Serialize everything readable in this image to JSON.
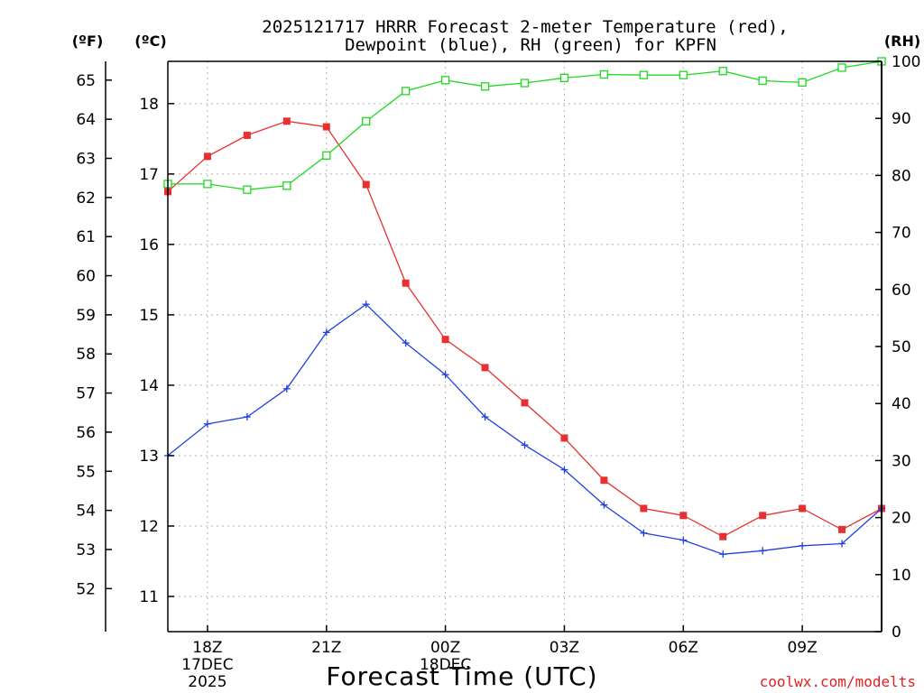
{
  "chart_data": {
    "type": "line",
    "title_line1": "2025121717 HRRR Forecast 2-meter Temperature (red),",
    "title_line2": "Dewpoint (blue), RH (green) for KPFN",
    "xlabel": "Forecast Time (UTC)",
    "credit": "coolwx.com/modelts",
    "units": {
      "fahrenheit": "(ºF)",
      "celsius": "(ºC)",
      "rh": "(RH)"
    },
    "x_hours": [
      17,
      18,
      19,
      20,
      21,
      22,
      23,
      24,
      25,
      26,
      27,
      28,
      29,
      30,
      31,
      32,
      33,
      34,
      35
    ],
    "xlim": [
      17,
      35
    ],
    "x_ticks": [
      {
        "hour": 18,
        "label": "18Z",
        "sub1": "17DEC",
        "sub2": "2025"
      },
      {
        "hour": 21,
        "label": "21Z",
        "sub1": "",
        "sub2": ""
      },
      {
        "hour": 24,
        "label": "00Z",
        "sub1": "18DEC",
        "sub2": ""
      },
      {
        "hour": 27,
        "label": "03Z",
        "sub1": "",
        "sub2": ""
      },
      {
        "hour": 30,
        "label": "06Z",
        "sub1": "",
        "sub2": ""
      },
      {
        "hour": 33,
        "label": "09Z",
        "sub1": "",
        "sub2": ""
      }
    ],
    "celsius_axis": {
      "range": [
        10.5,
        18.6
      ],
      "ticks": [
        11,
        12,
        13,
        14,
        15,
        16,
        17,
        18
      ]
    },
    "fahrenheit_axis": {
      "ticks": [
        52,
        53,
        54,
        55,
        56,
        57,
        58,
        59,
        60,
        61,
        62,
        63,
        64,
        65
      ]
    },
    "rh_axis": {
      "range": [
        0,
        100
      ],
      "ticks": [
        0,
        10,
        20,
        30,
        40,
        50,
        60,
        70,
        80,
        90,
        100
      ]
    },
    "series": [
      {
        "name": "Temperature",
        "color": "#e83030",
        "marker": "filled-square",
        "axis": "celsius",
        "values": [
          16.75,
          17.25,
          17.55,
          17.75,
          17.67,
          16.85,
          15.45,
          14.65,
          14.25,
          13.75,
          13.25,
          12.65,
          12.25,
          12.15,
          11.85,
          12.15,
          12.25,
          11.95,
          12.25
        ]
      },
      {
        "name": "Dewpoint",
        "color": "#2040e0",
        "marker": "plus",
        "axis": "celsius",
        "values": [
          13.0,
          13.45,
          13.55,
          13.95,
          14.75,
          15.15,
          14.6,
          14.15,
          13.55,
          13.15,
          12.8,
          12.3,
          11.9,
          11.8,
          11.6,
          11.65,
          11.72,
          11.75,
          12.25
        ]
      },
      {
        "name": "RH",
        "color": "#20d820",
        "marker": "open-square",
        "axis": "rh",
        "values": [
          78.5,
          78.5,
          77.5,
          78.2,
          83.5,
          89.5,
          94.8,
          96.7,
          95.6,
          96.2,
          97.1,
          97.7,
          97.6,
          97.6,
          98.3,
          96.6,
          96.3,
          98.9,
          100.0
        ]
      }
    ]
  }
}
